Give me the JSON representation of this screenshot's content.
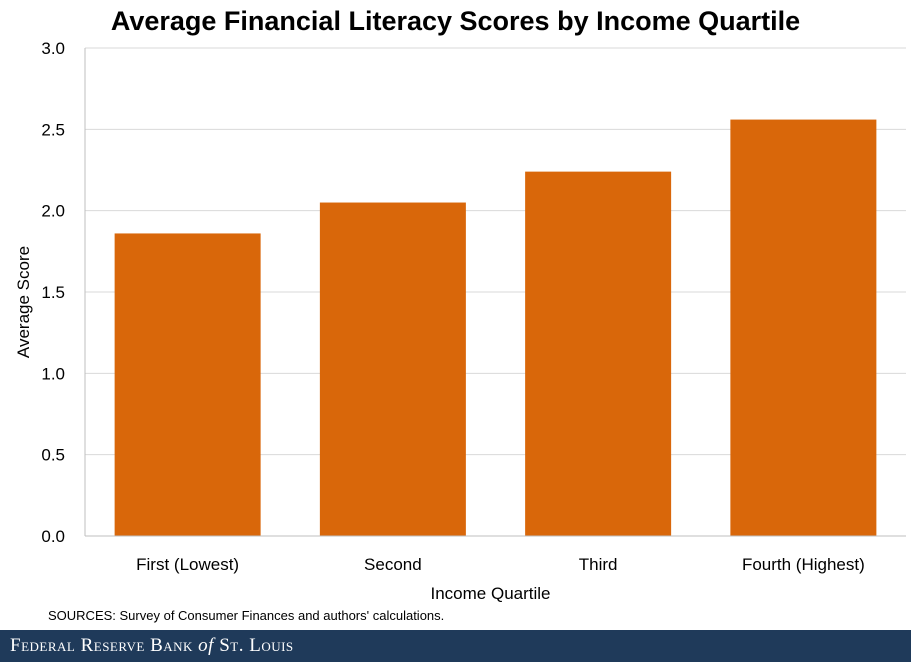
{
  "chart_data": {
    "type": "bar",
    "title": "Average Financial Literacy Scores by Income Quartile",
    "categories": [
      "First (Lowest)",
      "Second",
      "Third",
      "Fourth (Highest)"
    ],
    "values": [
      1.86,
      2.05,
      2.24,
      2.56
    ],
    "xlabel": "Income Quartile",
    "ylabel": "Average Score",
    "ylim": [
      0,
      3.0
    ],
    "yticks": [
      "0.0",
      "0.5",
      "1.0",
      "1.5",
      "2.0",
      "2.5",
      "3.0"
    ],
    "grid": true,
    "bar_color": "#d9670a",
    "grid_color": "#d9d9d9"
  },
  "source_note": "SOURCES: Survey of Consumer Finances and authors' calculations.",
  "footer": {
    "brand_before": "Federal Reserve Bank ",
    "brand_of": "of",
    "brand_after": " St. Louis",
    "background": "#1f3a5a"
  }
}
